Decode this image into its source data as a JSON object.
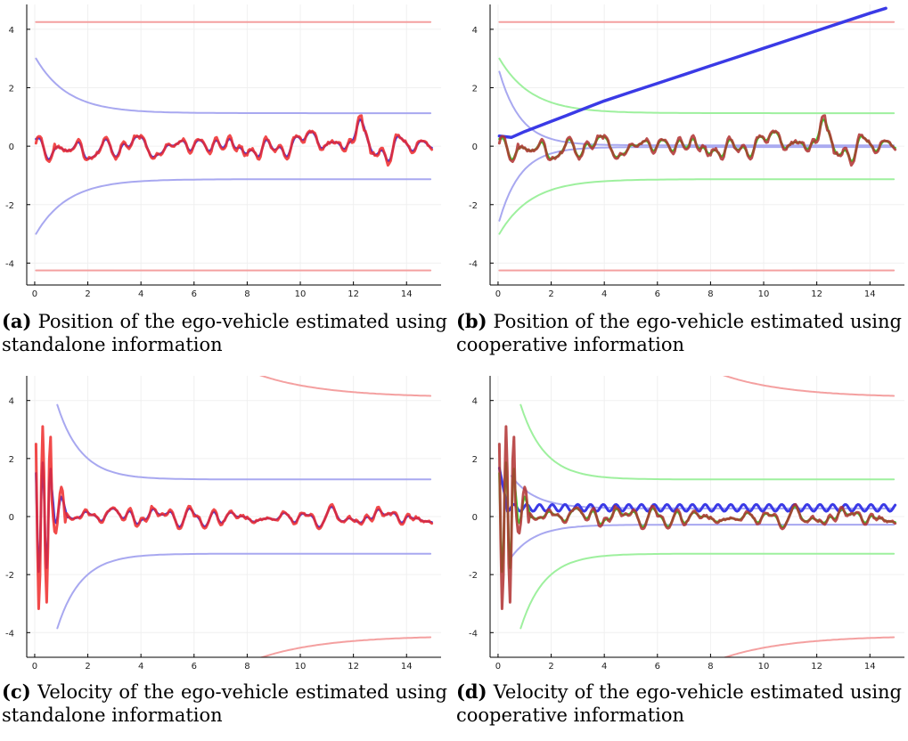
{
  "panels": [
    {
      "letter": "(a)",
      "caption": "Position of the ego-vehicle estimated using standalone information"
    },
    {
      "letter": "(b)",
      "caption": "Position of the ego-vehicle estimated using cooperative information"
    },
    {
      "letter": "(c)",
      "caption": "Velocity of the ego-vehicle estimated using standalone information"
    },
    {
      "letter": "(d)",
      "caption": "Velocity of the ego-vehicle estimated using cooperative information"
    }
  ],
  "colors": {
    "red_estimate": "#ef2a2a",
    "blue_estimate": "#3a3ae6",
    "green_estimate": "#33e033",
    "dark_estimate": "#b03030",
    "red_bound": "#f4a0a0",
    "blue_bound": "#a8a8f0",
    "green_bound": "#9ef09e",
    "axis": "#000000",
    "grid": "#f0f0f0"
  },
  "chart_data": [
    {
      "id": "a",
      "type": "line",
      "xlim": [
        -0.3,
        15.3
      ],
      "ylim": [
        -4.75,
        4.85
      ],
      "xticks": [
        0,
        2,
        4,
        6,
        8,
        10,
        12,
        14
      ],
      "yticks": [
        -4,
        -2,
        0,
        2,
        4
      ],
      "grid": true,
      "signal": "position",
      "series": [
        {
          "role": "red_bound_upper",
          "color": "#f4a0a0",
          "width": 2,
          "kind": "const",
          "value": 4.25,
          "x0": 0.05,
          "x1": 14.9
        },
        {
          "role": "red_bound_lower",
          "color": "#f4a0a0",
          "width": 2,
          "kind": "const",
          "value": -4.25,
          "x0": 0.05,
          "x1": 14.9
        },
        {
          "role": "blue_bound_upper",
          "color": "#a8a8f0",
          "width": 2,
          "kind": "decay",
          "start": 3.0,
          "end": 1.13,
          "tau": 1.2,
          "sign": 1,
          "x0": 0.05,
          "x1": 14.9
        },
        {
          "role": "blue_bound_lower",
          "color": "#a8a8f0",
          "width": 2,
          "kind": "decay",
          "start": 3.0,
          "end": 1.13,
          "tau": 1.2,
          "sign": -1,
          "x0": 0.05,
          "x1": 14.9
        },
        {
          "role": "blue_estimate",
          "color": "#3a3ae6",
          "width": 2.5,
          "kind": "pos",
          "smooth": true
        },
        {
          "role": "red_estimate",
          "color": "#ef2a2a",
          "width": 3,
          "opacity": 0.85,
          "kind": "pos",
          "smooth": false
        }
      ]
    },
    {
      "id": "b",
      "type": "line",
      "xlim": [
        -0.3,
        15.3
      ],
      "ylim": [
        -4.75,
        4.85
      ],
      "xticks": [
        0,
        2,
        4,
        6,
        8,
        10,
        12,
        14
      ],
      "yticks": [
        -4,
        -2,
        0,
        2,
        4
      ],
      "grid": true,
      "signal": "position",
      "series": [
        {
          "role": "red_bound_upper",
          "color": "#f4a0a0",
          "width": 2,
          "kind": "const",
          "value": 4.25,
          "x0": 0.05,
          "x1": 14.9
        },
        {
          "role": "red_bound_lower",
          "color": "#f4a0a0",
          "width": 2,
          "kind": "const",
          "value": -4.25,
          "x0": 0.05,
          "x1": 14.9
        },
        {
          "role": "green_bound_upper",
          "color": "#9ef09e",
          "width": 2,
          "kind": "decay",
          "start": 3.0,
          "end": 1.13,
          "tau": 1.2,
          "sign": 1,
          "x0": 0.05,
          "x1": 14.9
        },
        {
          "role": "green_bound_lower",
          "color": "#9ef09e",
          "width": 2,
          "kind": "decay",
          "start": 3.0,
          "end": 1.13,
          "tau": 1.2,
          "sign": -1,
          "x0": 0.05,
          "x1": 14.9
        },
        {
          "role": "blue_bound_upper",
          "color": "#a8a8f0",
          "width": 2,
          "kind": "decay",
          "start": 2.55,
          "end": 0.03,
          "tau": 0.8,
          "sign": 1,
          "x0": 0.05,
          "x1": 14.9
        },
        {
          "role": "blue_bound_lower",
          "color": "#a8a8f0",
          "width": 2,
          "kind": "decay",
          "start": 2.55,
          "end": 0.03,
          "tau": 0.8,
          "sign": -1,
          "x0": 0.05,
          "x1": 14.9
        },
        {
          "role": "blue_drift",
          "color": "#3a3ae6",
          "width": 3.5,
          "kind": "drift",
          "x": [
            0.05,
            0.5,
            1.0,
            2.0,
            3.0,
            4.0,
            5.0,
            6.0,
            7.0,
            8.0,
            9.0,
            10.0,
            11.0,
            12.0,
            13.0,
            14.0,
            14.6
          ],
          "y": [
            0.35,
            0.3,
            0.5,
            0.85,
            1.2,
            1.55,
            1.85,
            2.15,
            2.45,
            2.75,
            3.05,
            3.35,
            3.65,
            3.95,
            4.25,
            4.55,
            4.72
          ]
        },
        {
          "role": "green_estimate",
          "color": "#33e033",
          "width": 2.5,
          "kind": "pos",
          "smooth": true
        },
        {
          "role": "dark_estimate",
          "color": "#b03030",
          "width": 3,
          "opacity": 0.85,
          "kind": "pos",
          "smooth": false
        }
      ]
    },
    {
      "id": "c",
      "type": "line",
      "xlim": [
        -0.3,
        15.3
      ],
      "ylim": [
        -4.85,
        4.85
      ],
      "xticks": [
        0,
        2,
        4,
        6,
        8,
        10,
        12,
        14
      ],
      "yticks": [
        -4,
        -2,
        0,
        2,
        4
      ],
      "grid": true,
      "signal": "velocity",
      "series": [
        {
          "role": "red_bound_upper",
          "color": "#f4a0a0",
          "width": 2,
          "kind": "decay",
          "start": 5.5,
          "end": 4.1,
          "tau": 2.5,
          "sign": 1,
          "x0": 7.0,
          "x1": 14.9
        },
        {
          "role": "red_bound_lower",
          "color": "#f4a0a0",
          "width": 2,
          "kind": "decay",
          "start": 5.5,
          "end": 4.1,
          "tau": 2.5,
          "sign": -1,
          "x0": 7.0,
          "x1": 14.9
        },
        {
          "role": "blue_bound_upper",
          "color": "#a8a8f0",
          "width": 2,
          "kind": "decay",
          "start": 3.85,
          "end": 1.28,
          "tau": 0.9,
          "sign": 1,
          "x0": 0.85,
          "x1": 14.9
        },
        {
          "role": "blue_bound_lower",
          "color": "#a8a8f0",
          "width": 2,
          "kind": "decay",
          "start": 3.85,
          "end": 1.28,
          "tau": 0.9,
          "sign": -1,
          "x0": 0.85,
          "x1": 14.9
        },
        {
          "role": "blue_estimate",
          "color": "#3a3ae6",
          "width": 2.5,
          "kind": "vel",
          "smooth": true
        },
        {
          "role": "red_estimate",
          "color": "#ef2a2a",
          "width": 3,
          "opacity": 0.85,
          "kind": "vel",
          "smooth": false
        }
      ]
    },
    {
      "id": "d",
      "type": "line",
      "xlim": [
        -0.3,
        15.3
      ],
      "ylim": [
        -4.85,
        4.85
      ],
      "xticks": [
        0,
        2,
        4,
        6,
        8,
        10,
        12,
        14
      ],
      "yticks": [
        -4,
        -2,
        0,
        2,
        4
      ],
      "grid": true,
      "signal": "velocity",
      "series": [
        {
          "role": "red_bound_upper",
          "color": "#f4a0a0",
          "width": 2,
          "kind": "decay",
          "start": 5.5,
          "end": 4.1,
          "tau": 2.5,
          "sign": 1,
          "x0": 7.0,
          "x1": 14.9
        },
        {
          "role": "red_bound_lower",
          "color": "#f4a0a0",
          "width": 2,
          "kind": "decay",
          "start": 5.5,
          "end": 4.1,
          "tau": 2.5,
          "sign": -1,
          "x0": 7.0,
          "x1": 14.9
        },
        {
          "role": "green_bound_upper",
          "color": "#9ef09e",
          "width": 2,
          "kind": "decay",
          "start": 3.85,
          "end": 1.28,
          "tau": 0.9,
          "sign": 1,
          "x0": 0.85,
          "x1": 14.9
        },
        {
          "role": "green_bound_lower",
          "color": "#9ef09e",
          "width": 2,
          "kind": "decay",
          "start": 3.85,
          "end": 1.28,
          "tau": 0.9,
          "sign": -1,
          "x0": 0.85,
          "x1": 14.9
        },
        {
          "role": "blue_bound_upper",
          "color": "#a8a8f0",
          "width": 2,
          "kind": "decay",
          "start": 1.4,
          "end": 0.28,
          "tau": 0.9,
          "sign": 1,
          "x0": 0.5,
          "x1": 14.9
        },
        {
          "role": "blue_bound_lower",
          "color": "#a8a8f0",
          "width": 2,
          "kind": "decay",
          "start": 1.4,
          "end": 0.28,
          "tau": 0.9,
          "sign": -1,
          "x0": 0.5,
          "x1": 14.9
        },
        {
          "role": "blue_wave",
          "color": "#3a3ae6",
          "width": 3,
          "kind": "wave",
          "center": 0.3,
          "amp": 0.12,
          "period": 0.48
        },
        {
          "role": "green_estimate",
          "color": "#33e033",
          "width": 2.5,
          "kind": "vel",
          "smooth": true
        },
        {
          "role": "dark_estimate",
          "color": "#b03030",
          "width": 3,
          "opacity": 0.85,
          "kind": "vel",
          "smooth": false
        }
      ]
    }
  ]
}
